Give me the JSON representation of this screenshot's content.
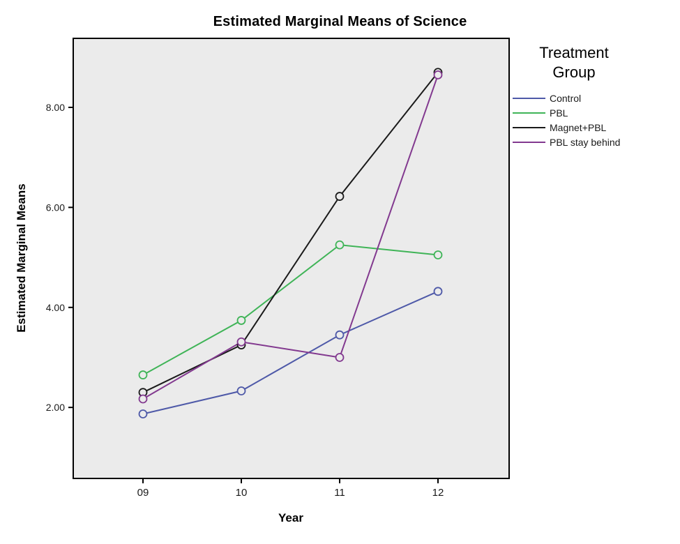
{
  "chart_data": {
    "type": "line",
    "title": "Estimated Marginal Means of Science",
    "xlabel": "Year",
    "ylabel": "Estimated Marginal Means",
    "legend_title": "Treatment Group",
    "legend_position": "right",
    "grid": false,
    "plot_bg": "#EBEBEB",
    "marker": "open-circle",
    "categories": [
      "09",
      "10",
      "11",
      "12"
    ],
    "series": [
      {
        "name": "Control",
        "color": "#4E59A8",
        "values": [
          1.87,
          2.33,
          3.45,
          4.32
        ]
      },
      {
        "name": "PBL",
        "color": "#3FB457",
        "values": [
          2.65,
          3.74,
          5.25,
          5.05
        ]
      },
      {
        "name": "Magnet+PBL",
        "color": "#1A1A1A",
        "values": [
          2.3,
          3.25,
          6.22,
          8.7
        ]
      },
      {
        "name": "PBL stay behind",
        "color": "#82398F",
        "values": [
          2.17,
          3.31,
          3.0,
          8.65
        ]
      }
    ],
    "yticks": [
      2,
      4,
      6,
      8
    ],
    "ytick_labels": [
      "2.00",
      "4.00",
      "6.00",
      "8.00"
    ],
    "ylim": [
      0.58,
      9.38
    ]
  }
}
